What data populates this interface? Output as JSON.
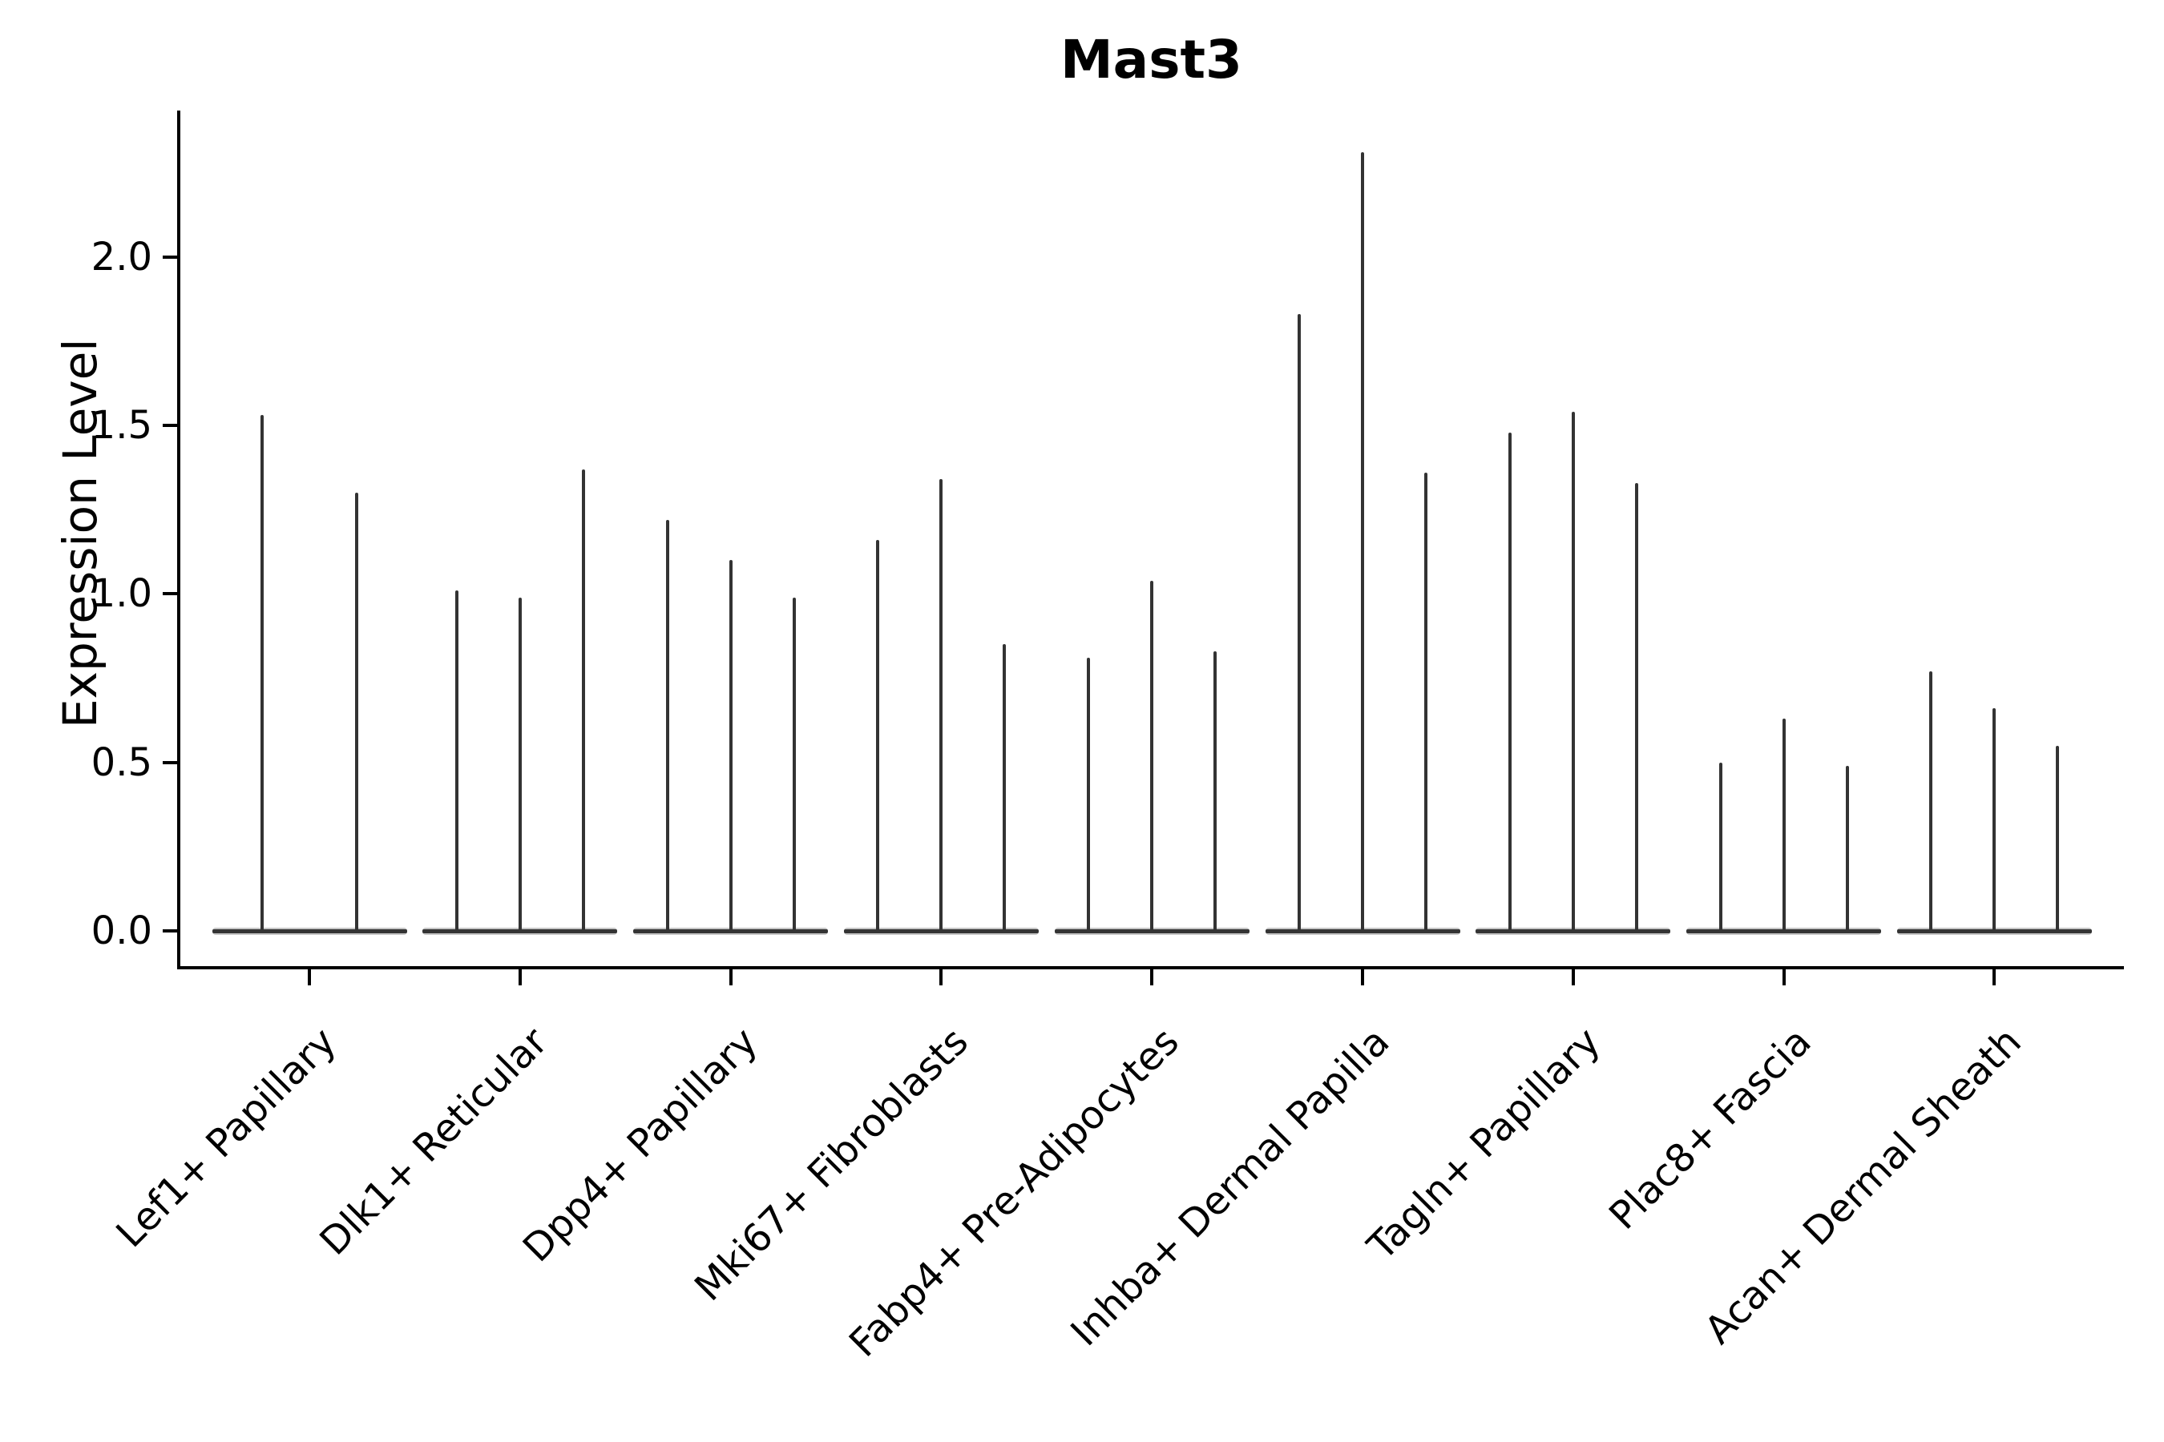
{
  "chart_data": {
    "type": "violin",
    "title": "Mast3",
    "ylabel": "Expression Level",
    "xlabel": "",
    "grid": false,
    "legend": null,
    "ylim": [
      -0.11,
      2.43
    ],
    "yticks": [
      0.0,
      0.5,
      1.0,
      1.5,
      2.0
    ],
    "ytick_labels": [
      "0.0",
      "0.5",
      "1.0",
      "1.5",
      "2.0"
    ],
    "categories": [
      "Lef1+ Papillary",
      "Dlk1+ Reticular",
      "Dpp4+ Papillary",
      "Mki67+ Fibroblasts",
      "Fabp4+ Pre-Adipocytes",
      "Inhba+ Dermal Papilla",
      "Tagln+ Papillary",
      "Plac8+ Fascia",
      "Acan+ Dermal Sheath"
    ],
    "groups": [
      {
        "category": "Lef1+ Papillary",
        "violin_peaks": [
          1.53,
          1.3
        ]
      },
      {
        "category": "Dlk1+ Reticular",
        "violin_peaks": [
          1.01,
          0.99,
          1.37
        ]
      },
      {
        "category": "Dpp4+ Papillary",
        "violin_peaks": [
          1.22,
          1.1,
          0.99
        ]
      },
      {
        "category": "Mki67+ Fibroblasts",
        "violin_peaks": [
          1.16,
          1.34,
          0.85
        ]
      },
      {
        "category": "Fabp4+ Pre-Adipocytes",
        "violin_peaks": [
          0.81,
          1.04,
          0.83
        ]
      },
      {
        "category": "Inhba+ Dermal Papilla",
        "violin_peaks": [
          1.83,
          2.31,
          1.36
        ]
      },
      {
        "category": "Tagln+ Papillary",
        "violin_peaks": [
          1.48,
          1.54,
          1.33
        ]
      },
      {
        "category": "Plac8+ Fascia",
        "violin_peaks": [
          0.5,
          0.63,
          0.49
        ]
      },
      {
        "category": "Acan+ Dermal Sheath",
        "violin_peaks": [
          0.77,
          0.66,
          0.55
        ]
      }
    ],
    "note": "Violins are extremely thin: a wide flat base at expression 0 with a hairline spike rising to each listed peak value."
  },
  "colors": {
    "violin_line": "#333333",
    "violin_base": "#343434",
    "violin_base_halo": "#c6c6c6",
    "axis": "#000000",
    "background": "#ffffff"
  }
}
